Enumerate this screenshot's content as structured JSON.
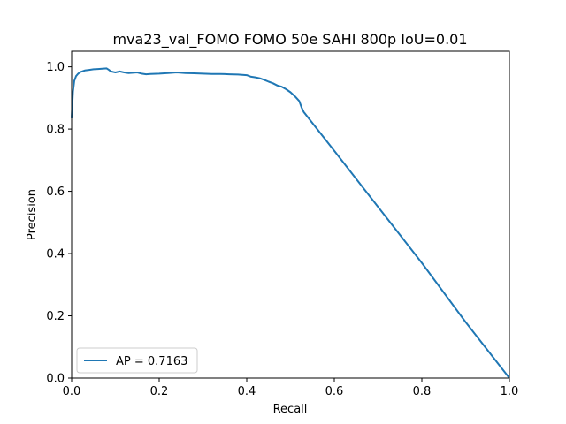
{
  "chart_data": {
    "type": "line",
    "title": "mva23_val_FOMO FOMO 50e SAHI 800p IoU=0.01",
    "xlabel": "Recall",
    "ylabel": "Precision",
    "xlim": [
      0,
      1
    ],
    "ylim": [
      0,
      1.05
    ],
    "xticks": [
      "0.0",
      "0.2",
      "0.4",
      "0.6",
      "0.8",
      "1.0"
    ],
    "yticks": [
      "0.0",
      "0.2",
      "0.4",
      "0.6",
      "0.8",
      "1.0"
    ],
    "grid": false,
    "legend_position": "lower-left",
    "series": [
      {
        "name": "AP = 0.7163",
        "color": "#1f77b4",
        "x": [
          0.0,
          0.003,
          0.006,
          0.01,
          0.015,
          0.02,
          0.03,
          0.04,
          0.05,
          0.06,
          0.08,
          0.085,
          0.09,
          0.1,
          0.11,
          0.12,
          0.13,
          0.15,
          0.16,
          0.17,
          0.18,
          0.2,
          0.22,
          0.24,
          0.26,
          0.28,
          0.3,
          0.32,
          0.34,
          0.36,
          0.38,
          0.4,
          0.41,
          0.42,
          0.43,
          0.44,
          0.45,
          0.46,
          0.47,
          0.48,
          0.49,
          0.5,
          0.51,
          0.52,
          0.525,
          0.53,
          0.6,
          0.7,
          0.8,
          0.9,
          1.0
        ],
        "y": [
          0.835,
          0.92,
          0.955,
          0.97,
          0.978,
          0.983,
          0.988,
          0.99,
          0.992,
          0.993,
          0.995,
          0.99,
          0.985,
          0.982,
          0.985,
          0.982,
          0.98,
          0.982,
          0.978,
          0.976,
          0.977,
          0.978,
          0.98,
          0.982,
          0.98,
          0.979,
          0.978,
          0.977,
          0.977,
          0.976,
          0.975,
          0.973,
          0.968,
          0.966,
          0.963,
          0.958,
          0.952,
          0.947,
          0.94,
          0.936,
          0.928,
          0.918,
          0.905,
          0.89,
          0.87,
          0.855,
          0.73,
          0.55,
          0.37,
          0.18,
          0.0
        ]
      }
    ]
  }
}
